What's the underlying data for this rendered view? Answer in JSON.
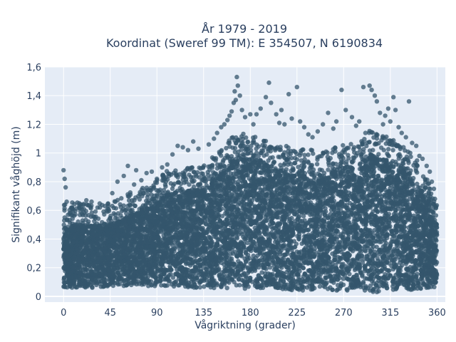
{
  "chart_data": {
    "type": "scatter",
    "title_line1": "År 1979 - 2019",
    "title_line2": "Koordinat (Sweref 99 TM): E 354507, N 6190834",
    "xlabel": "Vågriktning (grader)",
    "ylabel": "Signifikant våghöjd (m)",
    "xlim": [
      -18,
      368
    ],
    "ylim": [
      -0.04,
      1.6
    ],
    "x_ticks": [
      0,
      45,
      90,
      135,
      180,
      225,
      270,
      315,
      360
    ],
    "x_tick_labels": [
      "0",
      "45",
      "90",
      "135",
      "180",
      "225",
      "270",
      "315",
      "360"
    ],
    "y_ticks": [
      0,
      0.2,
      0.4,
      0.6,
      0.8,
      1.0,
      1.2,
      1.4,
      1.6
    ],
    "y_tick_labels": [
      "0",
      "0,2",
      "0,4",
      "0,6",
      "0,8",
      "1",
      "1,2",
      "1,4",
      "1,6"
    ],
    "grid": true,
    "colors": {
      "marker": "#34566c",
      "plot_background": "#e5ecf6",
      "grid": "#ffffff",
      "text": "#2a3f5f"
    },
    "density_envelope": {
      "x": [
        0,
        10,
        20,
        30,
        45,
        60,
        75,
        90,
        100,
        110,
        120,
        135,
        150,
        160,
        170,
        180,
        190,
        200,
        225,
        250,
        270,
        285,
        295,
        305,
        315,
        325,
        335,
        345,
        355,
        360
      ],
      "y_low": [
        0.05,
        0.06,
        0.06,
        0.06,
        0.07,
        0.07,
        0.07,
        0.07,
        0.07,
        0.07,
        0.06,
        0.06,
        0.05,
        0.05,
        0.05,
        0.05,
        0.05,
        0.05,
        0.04,
        0.04,
        0.04,
        0.04,
        0.03,
        0.03,
        0.03,
        0.04,
        0.04,
        0.05,
        0.06,
        0.06
      ],
      "y_high": [
        0.48,
        0.5,
        0.5,
        0.5,
        0.5,
        0.55,
        0.6,
        0.65,
        0.72,
        0.72,
        0.74,
        0.76,
        0.85,
        0.94,
        0.98,
        0.96,
        0.95,
        0.9,
        0.88,
        0.85,
        0.9,
        0.92,
        1.0,
        0.96,
        0.95,
        0.9,
        0.84,
        0.75,
        0.58,
        0.5
      ]
    },
    "outliers": [
      [
        0,
        0.88
      ],
      [
        1,
        0.82
      ],
      [
        2,
        0.76
      ],
      [
        3,
        0.66
      ],
      [
        8,
        0.62
      ],
      [
        22,
        0.67
      ],
      [
        27,
        0.66
      ],
      [
        35,
        0.62
      ],
      [
        40,
        0.63
      ],
      [
        47,
        0.72
      ],
      [
        52,
        0.8
      ],
      [
        58,
        0.84
      ],
      [
        62,
        0.91
      ],
      [
        68,
        0.78
      ],
      [
        70,
        0.88
      ],
      [
        75,
        0.81
      ],
      [
        80,
        0.86
      ],
      [
        85,
        0.87
      ],
      [
        90,
        0.82
      ],
      [
        95,
        0.9
      ],
      [
        100,
        0.92
      ],
      [
        105,
        0.99
      ],
      [
        110,
        1.05
      ],
      [
        115,
        1.04
      ],
      [
        120,
        1.02
      ],
      [
        125,
        1.08
      ],
      [
        130,
        1.03
      ],
      [
        140,
        1.06
      ],
      [
        145,
        1.1
      ],
      [
        148,
        1.14
      ],
      [
        152,
        1.18
      ],
      [
        155,
        1.2
      ],
      [
        158,
        1.23
      ],
      [
        160,
        1.26
      ],
      [
        162,
        1.29
      ],
      [
        164,
        1.35
      ],
      [
        165,
        1.43
      ],
      [
        166,
        1.37
      ],
      [
        167,
        1.53
      ],
      [
        168,
        1.47
      ],
      [
        170,
        1.4
      ],
      [
        172,
        1.3
      ],
      [
        175,
        1.25
      ],
      [
        180,
        1.27
      ],
      [
        183,
        1.2
      ],
      [
        186,
        1.27
      ],
      [
        190,
        1.31
      ],
      [
        195,
        1.39
      ],
      [
        198,
        1.49
      ],
      [
        200,
        1.35
      ],
      [
        205,
        1.27
      ],
      [
        208,
        1.21
      ],
      [
        210,
        1.3
      ],
      [
        213,
        1.2
      ],
      [
        217,
        1.41
      ],
      [
        220,
        1.24
      ],
      [
        225,
        1.46
      ],
      [
        228,
        1.22
      ],
      [
        232,
        1.18
      ],
      [
        236,
        1.13
      ],
      [
        240,
        1.11
      ],
      [
        245,
        1.15
      ],
      [
        250,
        1.2
      ],
      [
        255,
        1.28
      ],
      [
        260,
        1.17
      ],
      [
        263,
        1.22
      ],
      [
        268,
        1.44
      ],
      [
        272,
        1.3
      ],
      [
        278,
        1.25
      ],
      [
        282,
        1.19
      ],
      [
        285,
        1.22
      ],
      [
        289,
        1.46
      ],
      [
        291,
        1.14
      ],
      [
        295,
        1.47
      ],
      [
        297,
        1.44
      ],
      [
        300,
        1.4
      ],
      [
        302,
        1.36
      ],
      [
        305,
        1.28
      ],
      [
        308,
        1.2
      ],
      [
        310,
        1.26
      ],
      [
        313,
        1.31
      ],
      [
        315,
        1.22
      ],
      [
        318,
        1.39
      ],
      [
        320,
        1.3
      ],
      [
        323,
        1.18
      ],
      [
        326,
        1.14
      ],
      [
        330,
        1.11
      ],
      [
        333,
        1.36
      ],
      [
        336,
        1.07
      ],
      [
        340,
        1.05
      ],
      [
        343,
        0.98
      ],
      [
        346,
        0.96
      ],
      [
        350,
        0.91
      ],
      [
        353,
        0.87
      ],
      [
        355,
        0.8
      ],
      [
        357,
        0.75
      ],
      [
        358,
        0.68
      ],
      [
        359,
        0.62
      ]
    ]
  }
}
